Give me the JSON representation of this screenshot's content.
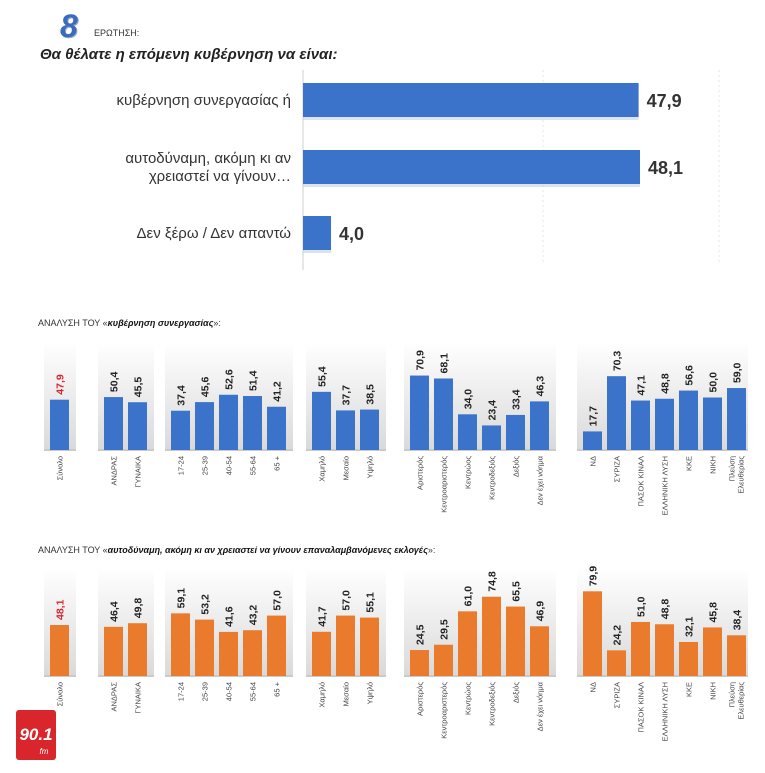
{
  "header": {
    "number": "8",
    "label": "ΕΡΩΤΗΣΗ:",
    "question": "Θα θέλατε η επόμενη κυβέρνηση να είναι:"
  },
  "chart_data": [
    {
      "type": "bar",
      "orientation": "horizontal",
      "title": "Θα θέλατε η επόμενη κυβέρνηση να είναι:",
      "categories": [
        [
          "κυβέρνηση συνεργασίας ή"
        ],
        [
          "αυτοδύναμη, ακόμη κι αν",
          "χρειαστεί να γίνουν…"
        ],
        [
          "Δεν ξέρω / Δεν απαντώ"
        ]
      ],
      "values": [
        47.9,
        48.1,
        4.0
      ],
      "value_labels": [
        "47,9",
        "48,1",
        "4,0"
      ],
      "xlim": [
        0,
        50
      ]
    },
    {
      "type": "bar",
      "title_prefix": "ΑΝΑΛΥΣΗ ΤΟΥ «",
      "title_bold": "κυβέρνηση συνεργασίας",
      "title_suffix": "»:",
      "groups": [
        {
          "categories": [
            "Σύνολο"
          ],
          "values": [
            47.9
          ],
          "labels": [
            "47,9"
          ]
        },
        {
          "categories": [
            "ΑΝΔΡΑΣ",
            "ΓΥΝΑΙΚΑ"
          ],
          "values": [
            50.4,
            45.5
          ],
          "labels": [
            "50,4",
            "45,5"
          ]
        },
        {
          "categories": [
            "17-24",
            "25-39",
            "40-54",
            "55-64",
            "65 +"
          ],
          "values": [
            37.4,
            45.6,
            52.6,
            51.4,
            41.2
          ],
          "labels": [
            "37,4",
            "45,6",
            "52,6",
            "51,4",
            "41,2"
          ]
        },
        {
          "categories": [
            "Χαμηλό",
            "Μεσαίο",
            "Υψηλό"
          ],
          "values": [
            55.4,
            37.7,
            38.5
          ],
          "labels": [
            "55,4",
            "37,7",
            "38,5"
          ]
        },
        {
          "categories": [
            "Αριστερός",
            "Κεντροαριστερός",
            "Κεντρώος",
            "Κεντροδεξιός",
            "Δεξιός",
            "Δεν έχει νόημα"
          ],
          "values": [
            70.9,
            68.1,
            34.0,
            23.4,
            33.4,
            46.3
          ],
          "labels": [
            "70,9",
            "68,1",
            "34,0",
            "23,4",
            "33,4",
            "46,3"
          ]
        },
        {
          "categories": [
            "ΝΔ",
            "ΣΥΡΙΖΑ",
            "ΠΑΣΟΚ ΚΙΝΑΛ",
            "ΕΛΛΗΝΙΚΗ ΛΥΣΗ",
            "ΚΚΕ",
            "ΝΙΚΗ",
            "Πλεύση Ελευθερίας"
          ],
          "values": [
            17.7,
            70.3,
            47.1,
            48.8,
            56.6,
            50.0,
            59.0
          ],
          "labels": [
            "17,7",
            "70,3",
            "47,1",
            "48,8",
            "56,6",
            "50,0",
            "59,0"
          ]
        }
      ]
    },
    {
      "type": "bar",
      "title_prefix": "ΑΝΑΛΥΣΗ ΤΟΥ «",
      "title_bold": "αυτοδύναμη, ακόμη κι αν χρειαστεί να γίνουν επαναλαμβανόμενες εκλογές",
      "title_suffix": "»:",
      "groups": [
        {
          "categories": [
            "Σύνολο"
          ],
          "values": [
            48.1
          ],
          "labels": [
            "48,1"
          ]
        },
        {
          "categories": [
            "ΑΝΔΡΑΣ",
            "ΓΥΝΑΙΚΑ"
          ],
          "values": [
            46.4,
            49.8
          ],
          "labels": [
            "46,4",
            "49,8"
          ]
        },
        {
          "categories": [
            "17-24",
            "25-39",
            "40-54",
            "55-64",
            "65 +"
          ],
          "values": [
            59.1,
            53.2,
            41.6,
            43.2,
            57.0
          ],
          "labels": [
            "59,1",
            "53,2",
            "41,6",
            "43,2",
            "57,0"
          ]
        },
        {
          "categories": [
            "Χαμηλό",
            "Μεσαίο",
            "Υψηλό"
          ],
          "values": [
            41.7,
            57.0,
            55.1
          ],
          "labels": [
            "41,7",
            "57,0",
            "55,1"
          ]
        },
        {
          "categories": [
            "Αριστερός",
            "Κεντροαριστερός",
            "Κεντρώος",
            "Κεντροδεξιός",
            "Δεξιός",
            "Δεν έχει νόημα"
          ],
          "values": [
            24.5,
            29.5,
            61.0,
            74.8,
            65.5,
            46.9
          ],
          "labels": [
            "24,5",
            "29,5",
            "61,0",
            "74,8",
            "65,5",
            "46,9"
          ]
        },
        {
          "categories": [
            "ΝΔ",
            "ΣΥΡΙΖΑ",
            "ΠΑΣΟΚ ΚΙΝΑΛ",
            "ΕΛΛΗΝΙΚΗ ΛΥΣΗ",
            "ΚΚΕ",
            "ΝΙΚΗ",
            "Πλεύση Ελευθερίας"
          ],
          "values": [
            79.9,
            24.2,
            51.0,
            48.8,
            32.1,
            45.8,
            38.4
          ],
          "labels": [
            "79,9",
            "24,2",
            "51,0",
            "48,8",
            "32,1",
            "45,8",
            "38,4"
          ]
        }
      ]
    }
  ],
  "colors": {
    "blue": "#3a73c9",
    "orange": "#ea7a2c",
    "highlight": "#d9262c",
    "title_accent": "#3a6bbf"
  },
  "logo": {
    "text": "90.1",
    "sub": "fm"
  }
}
